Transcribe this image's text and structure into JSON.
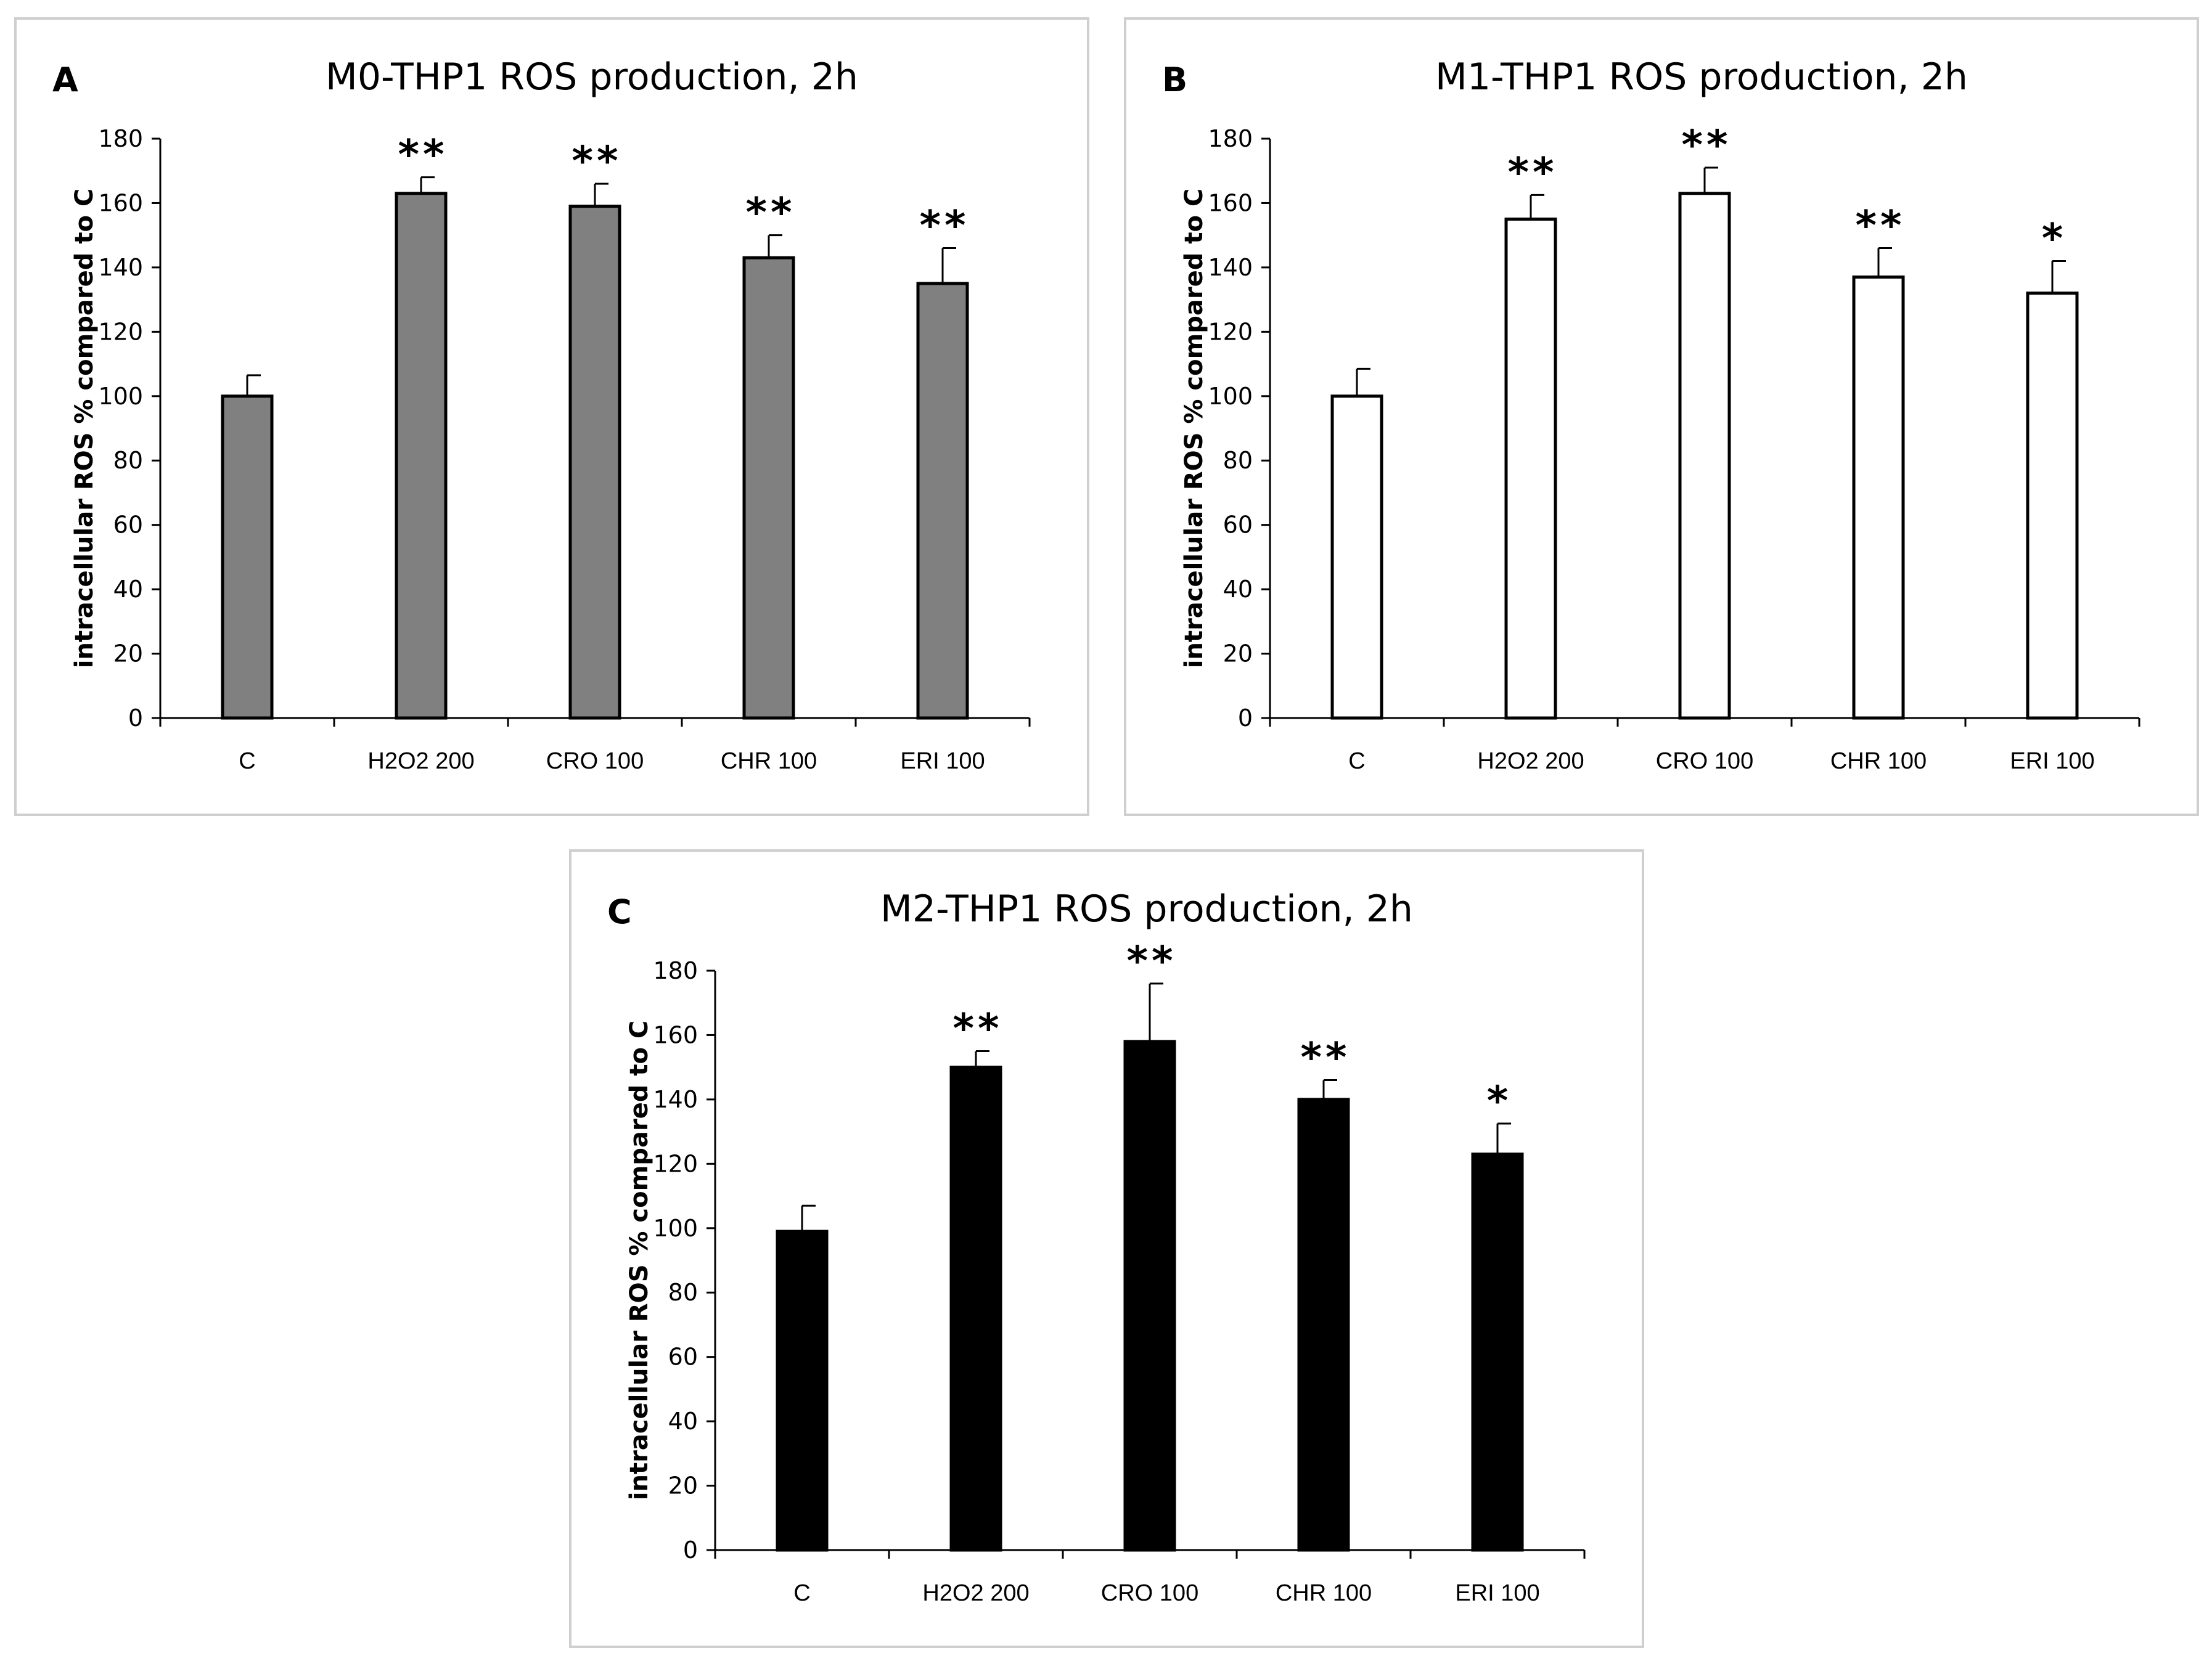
{
  "chart_data": [
    {
      "panel": "A",
      "type": "bar",
      "title": "M0-THP1 ROS production,  2h",
      "xlabel": "",
      "ylabel": "intracellular ROS % compared to C",
      "ylim": [
        0,
        180
      ],
      "yticks": [
        0,
        20,
        40,
        60,
        80,
        100,
        120,
        140,
        160,
        180
      ],
      "categories": [
        "C",
        "H2O2 200",
        "CRO 100",
        "CHR 100",
        "ERI 100"
      ],
      "values": [
        100,
        163,
        159,
        143,
        135
      ],
      "errors": [
        6.5,
        5,
        7,
        7,
        11
      ],
      "significance": [
        "",
        "**",
        "**",
        "**",
        "**"
      ],
      "bar_color": "#808080",
      "grid": false
    },
    {
      "panel": "B",
      "type": "bar",
      "title": "M1-THP1 ROS production,  2h",
      "xlabel": "",
      "ylabel": "intracellular ROS % compared to C",
      "ylim": [
        0,
        180
      ],
      "yticks": [
        0,
        20,
        40,
        60,
        80,
        100,
        120,
        140,
        160,
        180
      ],
      "categories": [
        "C",
        "H2O2 200",
        "CRO 100",
        "CHR 100",
        "ERI 100"
      ],
      "values": [
        100,
        155,
        163,
        137,
        132
      ],
      "errors": [
        8.5,
        7.5,
        8,
        9,
        10
      ],
      "significance": [
        "",
        "**",
        "**",
        "**",
        "*"
      ],
      "bar_color": "#ffffff",
      "grid": false
    },
    {
      "panel": "C",
      "type": "bar",
      "title": "M2-THP1 ROS production,  2h",
      "xlabel": "",
      "ylabel": "intracellular ROS % compared to C",
      "ylim": [
        0,
        180
      ],
      "yticks": [
        0,
        20,
        40,
        60,
        80,
        100,
        120,
        140,
        160,
        180
      ],
      "categories": [
        "C",
        "H2O2 200",
        "CRO 100",
        "CHR 100",
        "ERI 100"
      ],
      "values": [
        99,
        150,
        158,
        140,
        123
      ],
      "errors": [
        8,
        5,
        18,
        6,
        9.5
      ],
      "significance": [
        "",
        "**",
        "**",
        "**",
        "*"
      ],
      "bar_color": "#000000",
      "grid": false
    }
  ]
}
